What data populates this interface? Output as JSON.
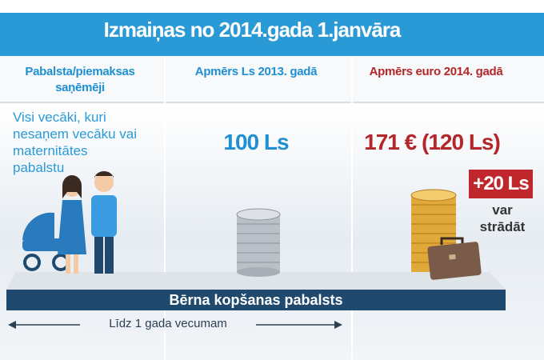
{
  "header": {
    "title": "Izmaiņas no 2014.gada 1.janvāra"
  },
  "columns": [
    "Pabalsta/piemaksas saņēmēji",
    "Apmērs Ls 2013. gadā",
    "Apmērs euro 2014. gadā"
  ],
  "row": {
    "recipients": "Visi vecāki, kuri nesaņem vecāku vai maternitātes pabalstu",
    "amount_2013": "100 Ls",
    "amount_2014": "171 € (120 Ls)",
    "bonus": "+20 Ls",
    "bonus_note": "var strādāt"
  },
  "banner": "Bērna kopšanas pabalsts",
  "duration": "Līdz 1 gada vecumam"
}
